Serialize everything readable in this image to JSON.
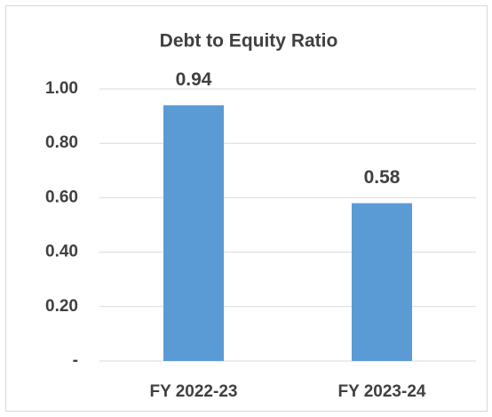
{
  "chart_data": {
    "type": "bar",
    "title": "Debt to Equity Ratio",
    "categories": [
      "FY 2022-23",
      "FY 2023-24"
    ],
    "values": [
      0.94,
      0.58
    ],
    "color": "#5b9bd5",
    "ylim": [
      0,
      1
    ],
    "yticks": [
      {
        "value": 0,
        "label": "-"
      },
      {
        "value": 0.2,
        "label": "0.20"
      },
      {
        "value": 0.4,
        "label": "0.40"
      },
      {
        "value": 0.6,
        "label": "0.60"
      },
      {
        "value": 0.8,
        "label": "0.80"
      },
      {
        "value": 1,
        "label": "1.00"
      }
    ],
    "grid": true
  }
}
